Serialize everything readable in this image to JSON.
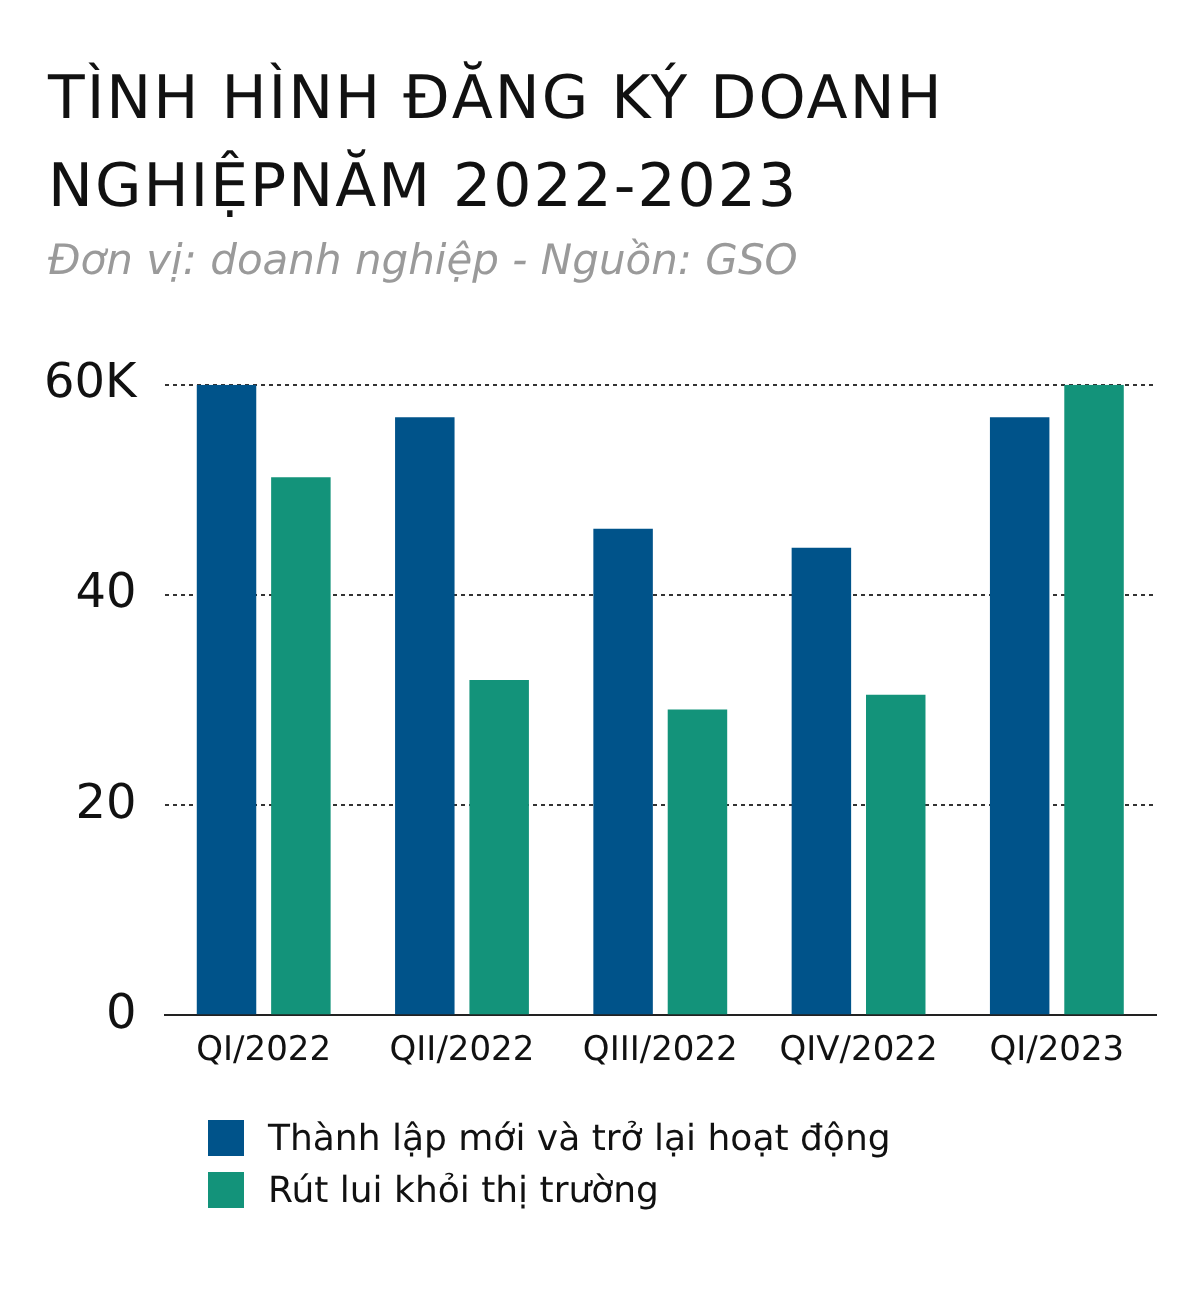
{
  "chart_data": {
    "type": "bar",
    "title": "TÌNH HÌNH ĐĂNG KÝ DOANH NGHIỆPNĂM 2022-2023",
    "subtitle": "Đơn vị: doanh nghiệp  -  Nguồn: GSO",
    "categories": [
      "QI/2022",
      "QII/2022",
      "QIII/2022",
      "QIV/2022",
      "QI/2023"
    ],
    "series": [
      {
        "name": "Thành lập mới và trở lại hoạt động",
        "color": "#00538a",
        "values": [
          60,
          56.9,
          46.3,
          44.5,
          56.9
        ]
      },
      {
        "name": "Rút lui  khỏi thị trường",
        "color": "#13937a",
        "values": [
          51.2,
          31.9,
          29.1,
          30.5,
          60
        ]
      }
    ],
    "ylim": [
      0,
      60
    ],
    "yticks": [
      0,
      20,
      40,
      {
        "value": 60,
        "label": "60K"
      }
    ],
    "grid": "y",
    "legend": "bottom left"
  }
}
